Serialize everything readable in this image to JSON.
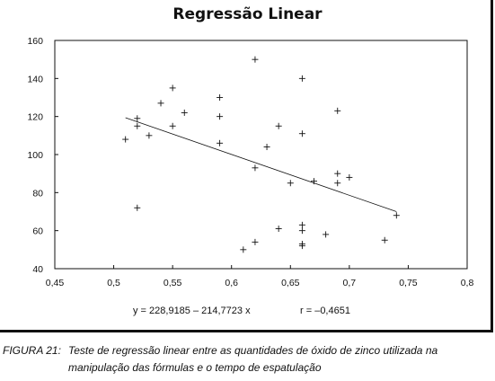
{
  "chart_data": {
    "type": "scatter",
    "title": "Regressão Linear",
    "xlabel": "",
    "ylabel": "",
    "xlim": [
      0.45,
      0.8
    ],
    "ylim": [
      40,
      160
    ],
    "x_ticks": [
      "0,45",
      "0,5",
      "0,55",
      "0,6",
      "0,65",
      "0,7",
      "0,75",
      "0,8"
    ],
    "y_ticks": [
      "40",
      "60",
      "80",
      "100",
      "120",
      "140",
      "160"
    ],
    "grid": false,
    "points": [
      {
        "x": 0.51,
        "y": 108
      },
      {
        "x": 0.52,
        "y": 119
      },
      {
        "x": 0.52,
        "y": 115
      },
      {
        "x": 0.52,
        "y": 72
      },
      {
        "x": 0.53,
        "y": 110
      },
      {
        "x": 0.54,
        "y": 127
      },
      {
        "x": 0.55,
        "y": 135
      },
      {
        "x": 0.55,
        "y": 115
      },
      {
        "x": 0.56,
        "y": 122
      },
      {
        "x": 0.59,
        "y": 130
      },
      {
        "x": 0.59,
        "y": 120
      },
      {
        "x": 0.59,
        "y": 106
      },
      {
        "x": 0.61,
        "y": 50
      },
      {
        "x": 0.62,
        "y": 150
      },
      {
        "x": 0.62,
        "y": 93
      },
      {
        "x": 0.62,
        "y": 54
      },
      {
        "x": 0.63,
        "y": 104
      },
      {
        "x": 0.64,
        "y": 115
      },
      {
        "x": 0.64,
        "y": 61
      },
      {
        "x": 0.65,
        "y": 85
      },
      {
        "x": 0.66,
        "y": 140
      },
      {
        "x": 0.66,
        "y": 111
      },
      {
        "x": 0.66,
        "y": 63
      },
      {
        "x": 0.66,
        "y": 60
      },
      {
        "x": 0.66,
        "y": 53
      },
      {
        "x": 0.66,
        "y": 52
      },
      {
        "x": 0.67,
        "y": 86
      },
      {
        "x": 0.68,
        "y": 58
      },
      {
        "x": 0.69,
        "y": 123
      },
      {
        "x": 0.69,
        "y": 90
      },
      {
        "x": 0.69,
        "y": 85
      },
      {
        "x": 0.7,
        "y": 88
      },
      {
        "x": 0.73,
        "y": 55
      },
      {
        "x": 0.74,
        "y": 68
      }
    ],
    "regression": {
      "intercept": 228.9185,
      "slope": -214.7723,
      "x_range": [
        0.51,
        0.74
      ]
    }
  },
  "equation_text": "y = 228,9185 – 214,7723 x",
  "correlation_text": "r = –0,4651",
  "caption": {
    "label": "FIGURA 21:",
    "line1": "Teste de regressão linear entre as quantidades de óxido de zinco utilizada na",
    "line2": "manipulação das fórmulas e o tempo de espatulação"
  }
}
